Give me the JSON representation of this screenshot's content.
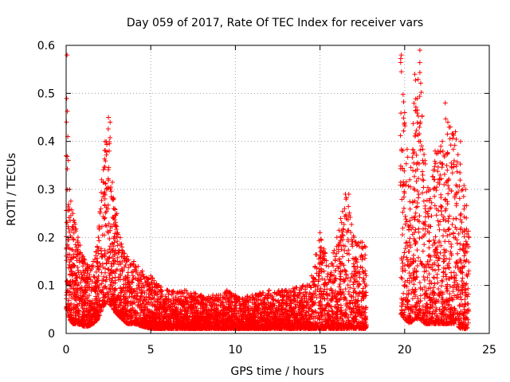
{
  "chart_data": {
    "type": "scatter",
    "title": "Day 059 of 2017, Rate Of TEC Index for receiver vars",
    "xlabel": "GPS time / hours",
    "ylabel": "ROTI / TECUs",
    "xlim": [
      0,
      25
    ],
    "ylim": [
      0,
      0.6
    ],
    "xticks": [
      "0",
      "5",
      "10",
      "15",
      "20",
      "25"
    ],
    "yticks": [
      "0",
      "0.1",
      "0.2",
      "0.3",
      "0.4",
      "0.5",
      "0.6"
    ],
    "grid": true,
    "marker": "plus",
    "color": "#ff0000",
    "envelope": {
      "x": [
        0.0,
        0.05,
        0.1,
        0.2,
        0.4,
        0.7,
        1.0,
        1.3,
        1.6,
        1.9,
        2.1,
        2.3,
        2.5,
        2.6,
        2.8,
        3.0,
        3.3,
        3.6,
        4.0,
        4.5,
        5.0,
        5.5,
        6.0,
        7.0,
        8.0,
        9.0,
        9.5,
        10.0,
        11.0,
        12.0,
        13.0,
        14.0,
        14.5,
        15.0,
        15.5,
        16.0,
        16.5,
        16.7,
        17.0,
        17.5,
        17.7,
        19.8,
        20.0,
        20.3,
        20.6,
        20.9,
        21.2,
        21.5,
        21.8,
        22.1,
        22.4,
        22.7,
        23.0,
        23.3,
        23.6,
        23.8
      ],
      "y": [
        0.37,
        0.58,
        0.41,
        0.3,
        0.25,
        0.2,
        0.16,
        0.14,
        0.15,
        0.2,
        0.32,
        0.4,
        0.45,
        0.44,
        0.28,
        0.25,
        0.18,
        0.16,
        0.15,
        0.13,
        0.12,
        0.1,
        0.09,
        0.09,
        0.08,
        0.08,
        0.09,
        0.08,
        0.08,
        0.09,
        0.09,
        0.1,
        0.12,
        0.21,
        0.14,
        0.2,
        0.29,
        0.29,
        0.2,
        0.19,
        0.18,
        0.58,
        0.46,
        0.32,
        0.54,
        0.59,
        0.36,
        0.3,
        0.38,
        0.38,
        0.48,
        0.43,
        0.42,
        0.4,
        0.3,
        0.2
      ],
      "base": [
        0.05,
        0.05,
        0.04,
        0.03,
        0.02,
        0.02,
        0.015,
        0.015,
        0.02,
        0.03,
        0.05,
        0.06,
        0.07,
        0.06,
        0.05,
        0.04,
        0.03,
        0.02,
        0.02,
        0.015,
        0.01,
        0.01,
        0.01,
        0.01,
        0.01,
        0.01,
        0.01,
        0.01,
        0.01,
        0.01,
        0.01,
        0.01,
        0.01,
        0.01,
        0.01,
        0.01,
        0.01,
        0.01,
        0.01,
        0.01,
        0.01,
        0.04,
        0.03,
        0.02,
        0.03,
        0.03,
        0.02,
        0.02,
        0.02,
        0.02,
        0.02,
        0.02,
        0.02,
        0.01,
        0.01,
        0.01
      ]
    }
  }
}
